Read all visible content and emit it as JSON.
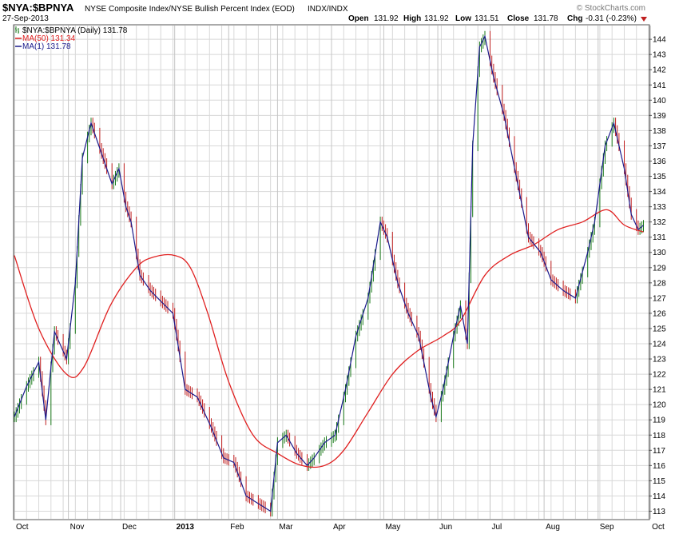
{
  "header": {
    "symbol": "$NYA:$BPNYA",
    "description": "NYSE Composite Index/NYSE Bullish Percent Index (EOD)",
    "exchange": "INDX/INDX",
    "date": "27-Sep-2013",
    "brand": "© StockCharts.com",
    "open_label": "Open",
    "open_value": "131.92",
    "high_label": "High",
    "high_value": "131.92",
    "low_label": "Low",
    "low_value": "131.51",
    "close_label": "Close",
    "close_value": "131.78",
    "chg_label": "Chg",
    "chg_value": "-0.31 (-0.23%)"
  },
  "legend": [
    {
      "label": "$NYA:$BPNYA (Daily) 131.78",
      "color": "#000000"
    },
    {
      "label": "MA(50) 131.34",
      "color": "#e02020"
    },
    {
      "label": "MA(1) 131.78",
      "color": "#1a1a8c"
    }
  ],
  "colors": {
    "ma50": "#e02020",
    "ma1": "#1a1a8c",
    "bar_up": "#1a7a1a",
    "bar_down": "#c02020",
    "grid": "#d8d8d8"
  },
  "chart_data": {
    "type": "line",
    "title": "$NYA:$BPNYA",
    "ylim": [
      112.5,
      144.9
    ],
    "y_ticks": [
      113,
      114,
      115,
      116,
      117,
      118,
      119,
      120,
      121,
      122,
      123,
      124,
      125,
      126,
      127,
      128,
      129,
      130,
      131,
      132,
      133,
      134,
      135,
      136,
      137,
      138,
      139,
      140,
      141,
      142,
      143,
      144
    ],
    "x_domain": [
      "2012-10-01",
      "2013-09-30"
    ],
    "x_ticks": [
      {
        "label": "Oct",
        "date": "2012-10-01"
      },
      {
        "label": "Nov",
        "date": "2012-11-01"
      },
      {
        "label": "Dec",
        "date": "2012-12-01"
      },
      {
        "label": "2013",
        "date": "2013-01-01",
        "bold": true
      },
      {
        "label": "Feb",
        "date": "2013-02-01"
      },
      {
        "label": "Mar",
        "date": "2013-03-01"
      },
      {
        "label": "Apr",
        "date": "2013-04-01"
      },
      {
        "label": "May",
        "date": "2013-05-01"
      },
      {
        "label": "Jun",
        "date": "2013-06-01"
      },
      {
        "label": "Jul",
        "date": "2013-07-01"
      },
      {
        "label": "Aug",
        "date": "2013-08-01"
      },
      {
        "label": "Sep",
        "date": "2013-09-01"
      },
      {
        "label": "Oct",
        "date": "2013-10-01"
      }
    ],
    "series": [
      {
        "name": "MA(1) 131.78",
        "x": [
          "2012-10-01",
          "2012-10-08",
          "2012-10-15",
          "2012-10-19",
          "2012-10-24",
          "2012-10-31",
          "2012-11-05",
          "2012-11-09",
          "2012-11-14",
          "2012-11-20",
          "2012-11-26",
          "2012-11-30",
          "2012-12-04",
          "2012-12-07",
          "2012-12-12",
          "2012-12-18",
          "2012-12-24",
          "2012-12-31",
          "2013-01-07",
          "2013-01-14",
          "2013-01-22",
          "2013-01-29",
          "2013-02-04",
          "2013-02-11",
          "2013-02-18",
          "2013-02-25",
          "2013-03-01",
          "2013-03-06",
          "2013-03-12",
          "2013-03-18",
          "2013-03-22",
          "2013-03-28",
          "2013-04-03",
          "2013-04-09",
          "2013-04-15",
          "2013-04-22",
          "2013-04-29",
          "2013-05-03",
          "2013-05-09",
          "2013-05-15",
          "2013-05-21",
          "2013-05-28",
          "2013-05-31",
          "2013-06-04",
          "2013-06-10",
          "2013-06-14",
          "2013-06-18",
          "2013-06-21",
          "2013-06-25",
          "2013-06-28",
          "2013-07-03",
          "2013-07-09",
          "2013-07-16",
          "2013-07-23",
          "2013-07-30",
          "2013-08-05",
          "2013-08-12",
          "2013-08-19",
          "2013-08-26",
          "2013-08-30",
          "2013-09-05",
          "2013-09-10",
          "2013-09-16",
          "2013-09-20",
          "2013-09-24",
          "2013-09-27"
        ],
        "values": [
          119.2,
          121.2,
          122.8,
          119.0,
          124.8,
          123.0,
          128.0,
          136.2,
          138.5,
          136.5,
          134.5,
          135.5,
          133.0,
          132.0,
          128.5,
          127.5,
          126.8,
          126.0,
          121.0,
          120.5,
          118.5,
          116.5,
          116.2,
          114.0,
          113.5,
          113.0,
          117.5,
          118.0,
          116.8,
          116.0,
          116.5,
          117.5,
          118.0,
          121.0,
          124.5,
          127.0,
          132.0,
          131.0,
          128.0,
          126.0,
          124.5,
          120.5,
          119.2,
          121.0,
          124.5,
          126.5,
          124.0,
          137.0,
          143.5,
          144.2,
          141.5,
          139.0,
          135.0,
          131.0,
          130.0,
          128.2,
          127.5,
          127.0,
          130.0,
          132.0,
          137.0,
          138.5,
          135.5,
          132.5,
          131.5,
          131.78
        ]
      },
      {
        "name": "MA(50) 131.34",
        "x": [
          "2012-10-01",
          "2012-10-15",
          "2012-10-31",
          "2012-11-10",
          "2012-11-25",
          "2012-12-10",
          "2012-12-20",
          "2013-01-01",
          "2013-01-10",
          "2013-01-20",
          "2013-02-01",
          "2013-02-15",
          "2013-03-01",
          "2013-03-15",
          "2013-03-28",
          "2013-04-08",
          "2013-04-22",
          "2013-05-06",
          "2013-05-20",
          "2013-06-04",
          "2013-06-14",
          "2013-06-28",
          "2013-07-12",
          "2013-07-26",
          "2013-08-09",
          "2013-08-23",
          "2013-09-06",
          "2013-09-16",
          "2013-09-27"
        ],
        "values": [
          129.8,
          125.0,
          122.0,
          122.5,
          126.5,
          129.0,
          129.7,
          129.8,
          129.0,
          126.0,
          121.5,
          118.0,
          116.8,
          116.0,
          116.0,
          117.0,
          119.5,
          122.0,
          123.5,
          124.5,
          125.5,
          128.5,
          129.8,
          130.5,
          131.5,
          132.0,
          132.8,
          131.8,
          131.34
        ]
      }
    ]
  }
}
